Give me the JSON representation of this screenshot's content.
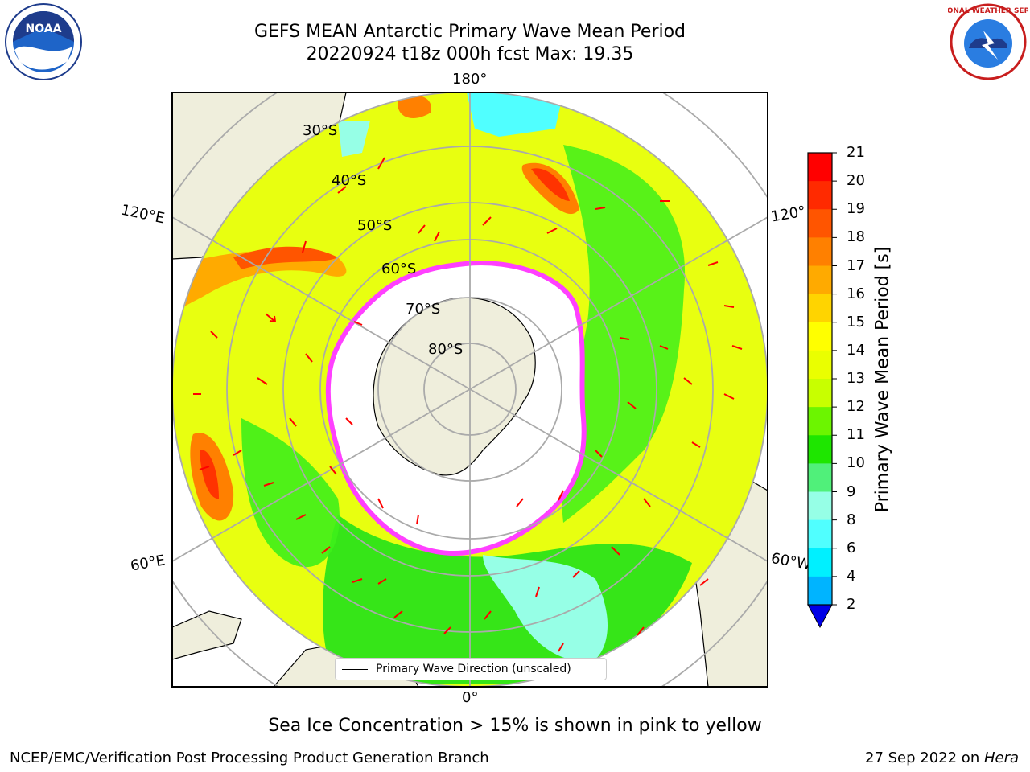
{
  "header": {
    "title_line1": "GEFS MEAN Antarctic Primary Wave Mean Period",
    "title_line2": "20220924 t18z 000h fcst   Max: 19.35"
  },
  "logos": {
    "left": "NOAA",
    "right": "NATIONAL WEATHER SERVICE"
  },
  "map": {
    "lon_labels": {
      "top": "180°",
      "bottom": "0°",
      "upper_left": "120°E",
      "lower_left": "60°E",
      "upper_right": "120°",
      "lower_right": "60°W"
    },
    "lat_labels": [
      "30°S",
      "40°S",
      "50°S",
      "60°S",
      "70°S",
      "80°S"
    ],
    "legend_label": "Primary Wave Direction (unscaled)"
  },
  "colorbar": {
    "title": "Primary Wave Mean Period [s]",
    "ticks": [
      "21",
      "20",
      "19",
      "18",
      "17",
      "16",
      "15",
      "14",
      "13",
      "12",
      "11",
      "10",
      "9",
      "8",
      "6",
      "4",
      "2"
    ],
    "colors": [
      "#ff0000",
      "#ff2a00",
      "#ff5500",
      "#ff8000",
      "#ffaa00",
      "#ffd400",
      "#ffff00",
      "#eaff00",
      "#c8ff00",
      "#6cf500",
      "#1ee600",
      "#50f07a",
      "#96ffe6",
      "#50ffff",
      "#00f0ff",
      "#00b4ff",
      "#0064ff"
    ]
  },
  "captions": {
    "sea_ice": "Sea Ice Concentration > 15% is shown in pink to yellow",
    "footer_left": "NCEP/EMC/Verification Post Processing Product Generation Branch",
    "footer_right_date": "27 Sep 2022 on ",
    "footer_right_machine": "Hera"
  }
}
